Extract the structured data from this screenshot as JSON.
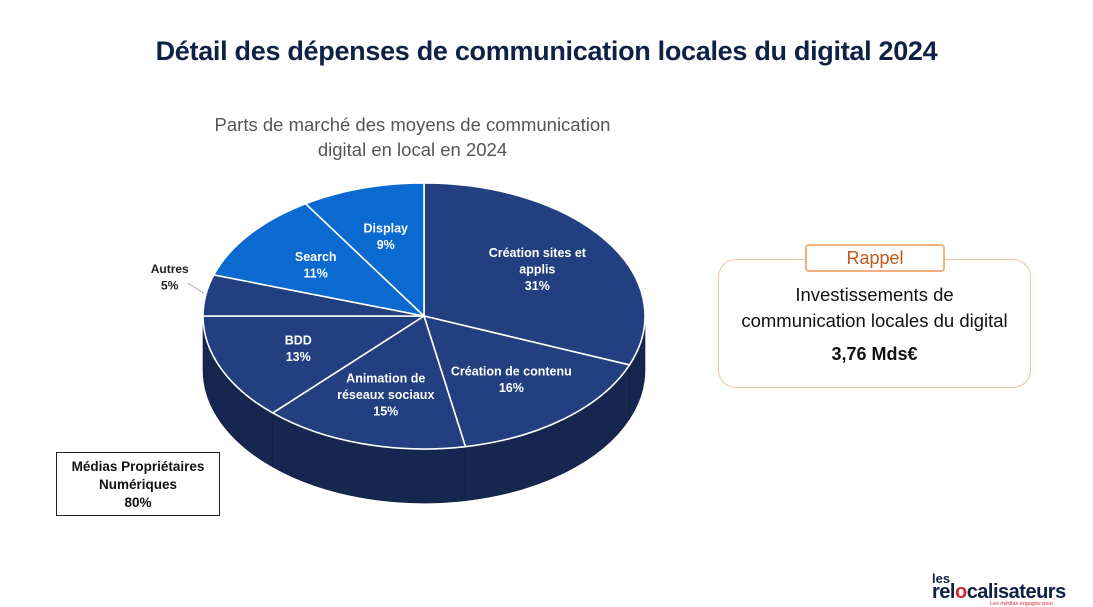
{
  "page": {
    "title": "Détail des dépenses de communication locales du digital 2024"
  },
  "chart_data": {
    "type": "pie",
    "title_lines": [
      "Parts de marché des moyens de communication",
      "digital en local en 2024"
    ],
    "slices": [
      {
        "label_lines": [
          "Création sites et",
          "applis"
        ],
        "value": 31,
        "value_label": "31%",
        "group": "owned",
        "color": "#223f7f"
      },
      {
        "label_lines": [
          "Création de contenu"
        ],
        "value": 16,
        "value_label": "16%",
        "group": "owned",
        "color": "#223f7f"
      },
      {
        "label_lines": [
          "Animation de",
          "réseaux sociaux"
        ],
        "value": 15,
        "value_label": "15%",
        "group": "owned",
        "color": "#223f7f"
      },
      {
        "label_lines": [
          "BDD"
        ],
        "value": 13,
        "value_label": "13%",
        "group": "owned",
        "color": "#223f7f"
      },
      {
        "label_lines": [
          "Autres"
        ],
        "value": 5,
        "value_label": "5%",
        "group": "owned",
        "color": "#223f7f",
        "label_outside": true
      },
      {
        "label_lines": [
          "Search"
        ],
        "value": 11,
        "value_label": "11%",
        "group": "paid",
        "color": "#0a6ad0"
      },
      {
        "label_lines": [
          "Display"
        ],
        "value": 9,
        "value_label": "9%",
        "group": "paid",
        "color": "#0a6ad0"
      }
    ],
    "group_annotation": {
      "lines": [
        "Médias Propriétaires",
        "Numériques"
      ],
      "value": "80%"
    }
  },
  "recap": {
    "tag": "Rappel",
    "text_lines": [
      "Investissements de",
      "communication locales du digital"
    ],
    "value": "3,76 Mds€"
  },
  "logo": {
    "prefix": "les",
    "word_start": "rel",
    "word_mid": "o",
    "word_end": "calisateurs",
    "tagline": "Les médias engagés pour"
  },
  "colors": {
    "owned_slice": "#223f7f",
    "paid_slice": "#0a6ad0",
    "side": "#15274e",
    "title": "#0f2246",
    "accent": "#c0581a"
  }
}
